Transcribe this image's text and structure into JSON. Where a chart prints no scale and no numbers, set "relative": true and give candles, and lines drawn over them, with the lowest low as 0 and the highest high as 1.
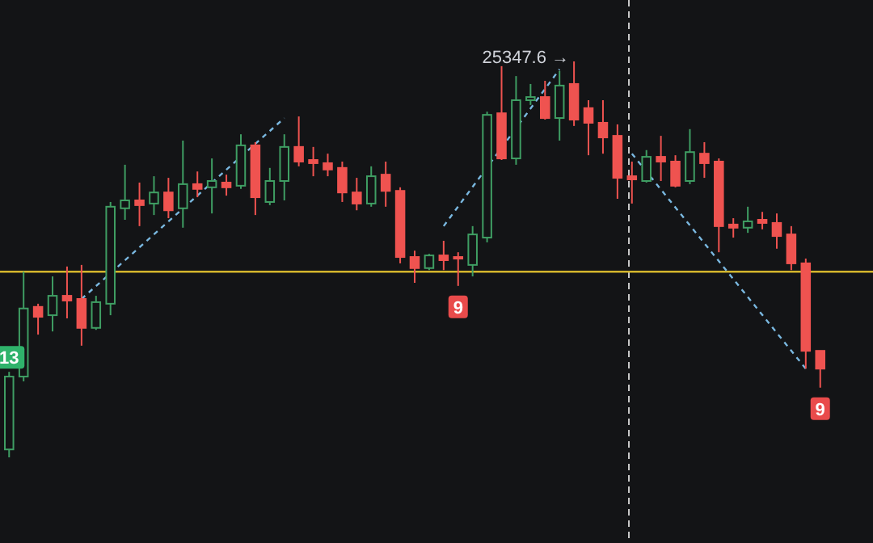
{
  "chart_data": {
    "type": "candlestick",
    "relative": true,
    "categories": [
      null,
      null,
      null,
      null,
      null,
      null,
      null,
      null,
      null,
      null,
      null,
      null,
      null,
      null,
      null,
      null,
      null,
      null,
      null,
      null,
      null,
      null,
      null,
      null,
      null,
      null,
      null,
      null,
      null,
      null,
      null,
      null,
      null,
      null,
      null,
      null,
      null,
      null,
      null,
      null,
      null,
      null,
      null,
      null,
      null,
      null,
      null,
      null,
      null,
      null,
      null,
      null,
      null,
      null,
      null,
      null,
      null
    ],
    "ohlc": [
      [
        0.02,
        0.216,
        0,
        0.204
      ],
      [
        0.204,
        0.469,
        0.192,
        0.376
      ],
      [
        0.38,
        0.388,
        0.31,
        0.355
      ],
      [
        0.359,
        0.457,
        0.318,
        0.408
      ],
      [
        0.408,
        0.482,
        0.351,
        0.396
      ],
      [
        0.4,
        0.486,
        0.282,
        0.327
      ],
      [
        0.327,
        0.408,
        0.322,
        0.392
      ],
      [
        0.388,
        0.645,
        0.359,
        0.633
      ],
      [
        0.629,
        0.739,
        0.6,
        0.649
      ],
      [
        0.649,
        0.694,
        0.584,
        0.637
      ],
      [
        0.641,
        0.71,
        0.612,
        0.669
      ],
      [
        0.669,
        0.706,
        0.604,
        0.624
      ],
      [
        0.629,
        0.8,
        0.58,
        0.69
      ],
      [
        0.69,
        0.722,
        0.657,
        0.678
      ],
      [
        0.682,
        0.755,
        0.616,
        0.698
      ],
      [
        0.694,
        0.714,
        0.661,
        0.682
      ],
      [
        0.686,
        0.816,
        0.678,
        0.788
      ],
      [
        0.788,
        0.796,
        0.612,
        0.657
      ],
      [
        0.645,
        0.731,
        0.637,
        0.698
      ],
      [
        0.698,
        0.816,
        0.649,
        0.784
      ],
      [
        0.784,
        0.861,
        0.735,
        0.747
      ],
      [
        0.751,
        0.784,
        0.71,
        0.743
      ],
      [
        0.743,
        0.767,
        0.71,
        0.727
      ],
      [
        0.731,
        0.747,
        0.645,
        0.669
      ],
      [
        0.669,
        0.706,
        0.624,
        0.641
      ],
      [
        0.641,
        0.735,
        0.633,
        0.71
      ],
      [
        0.714,
        0.747,
        0.633,
        0.673
      ],
      [
        0.673,
        0.682,
        0.49,
        0.506
      ],
      [
        0.506,
        0.522,
        0.441,
        0.478
      ],
      [
        0.478,
        0.514,
        0.473,
        0.51
      ],
      [
        0.51,
        0.547,
        0.473,
        0.498
      ],
      [
        0.506,
        0.518,
        0.433,
        0.502
      ],
      [
        0.486,
        0.584,
        0.457,
        0.563
      ],
      [
        0.555,
        0.873,
        0.543,
        0.865
      ],
      [
        0.869,
        0.988,
        0.751,
        0.755
      ],
      [
        0.755,
        0.963,
        0.739,
        0.902
      ],
      [
        0.902,
        0.943,
        0.89,
        0.91
      ],
      [
        0.91,
        0.951,
        0.853,
        0.857
      ],
      [
        0.857,
        0.976,
        0.8,
        0.939
      ],
      [
        0.943,
        1,
        0.837,
        0.853
      ],
      [
        0.882,
        0.902,
        0.763,
        0.845
      ],
      [
        0.845,
        0.902,
        0.767,
        0.808
      ],
      [
        0.812,
        0.841,
        0.653,
        0.706
      ],
      [
        0.71,
        0.747,
        0.641,
        0.702
      ],
      [
        0.698,
        0.776,
        0.694,
        0.759
      ],
      [
        0.759,
        0.812,
        0.698,
        0.747
      ],
      [
        0.747,
        0.763,
        0.682,
        0.686
      ],
      [
        0.698,
        0.829,
        0.69,
        0.771
      ],
      [
        0.767,
        0.796,
        0.706,
        0.743
      ],
      [
        0.747,
        0.755,
        0.518,
        0.584
      ],
      [
        0.588,
        0.604,
        0.555,
        0.58
      ],
      [
        0.58,
        0.633,
        0.567,
        0.596
      ],
      [
        0.6,
        0.62,
        0.576,
        0.592
      ],
      [
        0.592,
        0.616,
        0.527,
        0.559
      ],
      [
        0.563,
        0.584,
        0.473,
        0.49
      ],
      [
        0.49,
        0.502,
        0.224,
        0.269
      ],
      [
        0.269,
        0.269,
        0.176,
        0.224
      ]
    ],
    "series": [
      {
        "type": "line",
        "color": "#7ab8e0",
        "line_style": "dashed",
        "values": [
          null,
          null,
          null,
          null,
          null,
          0.4,
          null,
          null,
          null,
          null,
          null,
          null,
          null,
          null,
          null,
          null,
          null,
          null,
          null,
          0.857,
          null,
          null,
          null,
          null,
          null,
          null,
          null,
          null,
          null,
          null,
          null,
          null,
          null,
          null,
          null,
          null,
          null,
          null,
          null,
          null,
          null,
          null,
          null,
          null,
          null,
          null,
          null,
          null,
          null,
          null,
          null,
          null,
          null,
          null,
          null,
          null,
          null
        ]
      },
      {
        "type": "line",
        "color": "#7ab8e0",
        "line_style": "dashed",
        "values": [
          null,
          null,
          null,
          null,
          null,
          null,
          null,
          null,
          null,
          null,
          null,
          null,
          null,
          null,
          null,
          null,
          null,
          null,
          null,
          null,
          null,
          null,
          null,
          null,
          null,
          null,
          null,
          null,
          null,
          null,
          0.584,
          null,
          null,
          null,
          null,
          null,
          null,
          null,
          0.98,
          null,
          null,
          null,
          null,
          null,
          null,
          null,
          null,
          null,
          null,
          null,
          null,
          null,
          null,
          null,
          null,
          null,
          null
        ]
      },
      {
        "type": "line",
        "color": "#7ab8e0",
        "line_style": "dashed",
        "values": [
          null,
          null,
          null,
          null,
          null,
          null,
          null,
          null,
          null,
          null,
          null,
          null,
          null,
          null,
          null,
          null,
          null,
          null,
          null,
          null,
          null,
          null,
          null,
          null,
          null,
          null,
          null,
          null,
          null,
          null,
          null,
          null,
          null,
          null,
          null,
          null,
          null,
          null,
          null,
          null,
          null,
          null,
          null,
          0.767,
          null,
          null,
          null,
          null,
          null,
          null,
          null,
          null,
          null,
          null,
          null,
          0.224,
          null
        ]
      }
    ],
    "ref_lines": [
      {
        "axis": "y",
        "value": 0.469,
        "color": "#d4b62c"
      }
    ],
    "annotations": [
      "25347.6 →",
      {
        "text": "13",
        "y": 0.216
      },
      {
        "text": "9",
        "y": 0.433
      },
      {
        "text": "9",
        "y": 0.176
      }
    ]
  }
}
